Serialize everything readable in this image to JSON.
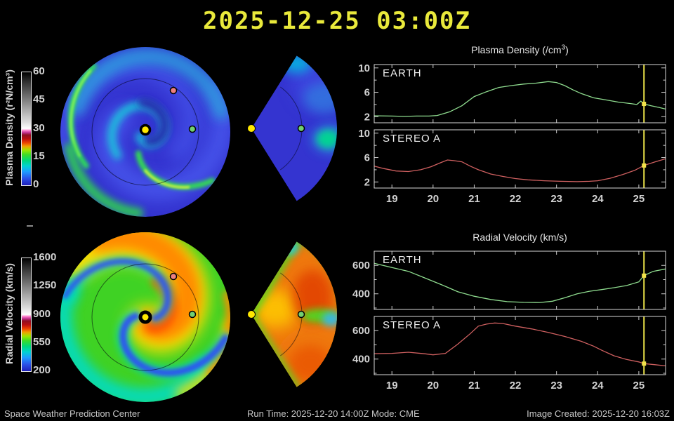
{
  "title": "2025-12-25 03:00Z",
  "colors": {
    "title": "#e9e93b",
    "axis_text": "#d2d2d2",
    "panel_border": "#d8d8d8",
    "now_line": "#e8e048",
    "now_marker": "#f2e24a",
    "sun_marker": "#ffe800",
    "earth_marker": "#72d072",
    "stereo_a_marker": "#ee8080",
    "density_base": "#3434d0",
    "velocity_base": "#3fd224",
    "background": "#000000"
  },
  "colormap": [
    {
      "p": 0.0,
      "c": "#2020bb"
    },
    {
      "p": 0.06,
      "c": "#2a52e8"
    },
    {
      "p": 0.12,
      "c": "#1e9bff"
    },
    {
      "p": 0.17,
      "c": "#00d2d2"
    },
    {
      "p": 0.22,
      "c": "#00d87a"
    },
    {
      "p": 0.27,
      "c": "#3cdc28"
    },
    {
      "p": 0.31,
      "c": "#9ce400"
    },
    {
      "p": 0.345,
      "c": "#f0a000"
    },
    {
      "p": 0.375,
      "c": "#ee4400"
    },
    {
      "p": 0.41,
      "c": "#bb0f0f"
    },
    {
      "p": 0.445,
      "c": "#8f0f20"
    },
    {
      "p": 0.465,
      "c": "#c03090"
    },
    {
      "p": 0.485,
      "c": "#ff80cc"
    },
    {
      "p": 0.5,
      "c": "#ffffff"
    },
    {
      "p": 0.56,
      "c": "#dcdcdc"
    },
    {
      "p": 0.68,
      "c": "#a4a4a4"
    },
    {
      "p": 0.8,
      "c": "#686868"
    },
    {
      "p": 0.92,
      "c": "#2e2e2e"
    },
    {
      "p": 1.0,
      "c": "#000000"
    }
  ],
  "colorbars": [
    {
      "label": "Plasma Density (r²N/cm³)",
      "ticks": [
        "60",
        "45",
        "30",
        "15",
        "0"
      ]
    },
    {
      "label": "Radial Velocity (km/s)",
      "ticks": [
        "1600",
        "1250",
        "900",
        "550",
        "200"
      ]
    }
  ],
  "maps": {
    "markers": [
      {
        "name": "sun",
        "color": "#ffe800"
      },
      {
        "name": "earth",
        "color": "#72d072"
      },
      {
        "name": "stereo-a",
        "color": "#ee8080"
      }
    ]
  },
  "chart_data": [
    {
      "type": "line",
      "title": "Plasma Density (/cm³)",
      "xlabel": "",
      "ylabel": "",
      "x": {
        "min": 18.57,
        "max": 25.65,
        "ticks": [
          19,
          20,
          21,
          22,
          23,
          24,
          25
        ]
      },
      "y": {
        "min": 1.0,
        "max": 10.55,
        "major_ticks": [
          2,
          6,
          10
        ],
        "minor_ticks": [
          4,
          8
        ]
      },
      "now_x": 25.125,
      "legend_position": "inside-top-left",
      "grid": false,
      "series": [
        {
          "name": "EARTH",
          "color": "#8fdc8f",
          "points": [
            [
              18.57,
              2.15
            ],
            [
              19.0,
              2.1
            ],
            [
              19.3,
              2.05
            ],
            [
              19.6,
              2.1
            ],
            [
              19.9,
              2.1
            ],
            [
              20.1,
              2.2
            ],
            [
              20.4,
              2.8
            ],
            [
              20.7,
              3.8
            ],
            [
              21.0,
              5.3
            ],
            [
              21.3,
              6.1
            ],
            [
              21.6,
              6.8
            ],
            [
              21.9,
              7.1
            ],
            [
              22.2,
              7.35
            ],
            [
              22.5,
              7.5
            ],
            [
              22.8,
              7.75
            ],
            [
              23.0,
              7.6
            ],
            [
              23.2,
              7.1
            ],
            [
              23.4,
              6.4
            ],
            [
              23.6,
              5.8
            ],
            [
              23.9,
              5.1
            ],
            [
              24.2,
              4.75
            ],
            [
              24.5,
              4.4
            ],
            [
              24.8,
              4.15
            ],
            [
              24.95,
              4.0
            ],
            [
              25.05,
              4.55
            ],
            [
              25.125,
              4.1
            ],
            [
              25.3,
              3.8
            ],
            [
              25.5,
              3.5
            ],
            [
              25.65,
              3.25
            ]
          ]
        },
        {
          "name": "STEREO A",
          "color": "#cf6060",
          "points": [
            [
              18.57,
              4.6
            ],
            [
              18.8,
              4.2
            ],
            [
              19.1,
              3.8
            ],
            [
              19.4,
              3.7
            ],
            [
              19.7,
              4.0
            ],
            [
              19.95,
              4.5
            ],
            [
              20.2,
              5.2
            ],
            [
              20.35,
              5.6
            ],
            [
              20.5,
              5.5
            ],
            [
              20.7,
              5.3
            ],
            [
              20.9,
              4.6
            ],
            [
              21.1,
              4.0
            ],
            [
              21.4,
              3.3
            ],
            [
              21.7,
              2.9
            ],
            [
              22.0,
              2.55
            ],
            [
              22.3,
              2.35
            ],
            [
              22.7,
              2.2
            ],
            [
              23.1,
              2.1
            ],
            [
              23.5,
              2.05
            ],
            [
              23.8,
              2.1
            ],
            [
              24.0,
              2.2
            ],
            [
              24.3,
              2.6
            ],
            [
              24.6,
              3.2
            ],
            [
              24.9,
              3.9
            ],
            [
              25.125,
              4.7
            ],
            [
              25.4,
              5.3
            ],
            [
              25.65,
              5.8
            ]
          ]
        }
      ]
    },
    {
      "type": "line",
      "title": "Radial Velocity (km/s)",
      "xlabel": "",
      "ylabel": "",
      "x": {
        "min": 18.57,
        "max": 25.65,
        "ticks": [
          19,
          20,
          21,
          22,
          23,
          24,
          25
        ]
      },
      "y": {
        "min": 290,
        "max": 700,
        "major_ticks": [
          400,
          600
        ],
        "minor_ticks": [
          300,
          500,
          700
        ]
      },
      "now_x": 25.125,
      "legend_position": "inside-top-left",
      "grid": false,
      "series": [
        {
          "name": "EARTH",
          "color": "#8fdc8f",
          "points": [
            [
              18.57,
              615
            ],
            [
              19.0,
              585
            ],
            [
              19.4,
              558
            ],
            [
              19.8,
              512
            ],
            [
              20.2,
              465
            ],
            [
              20.6,
              415
            ],
            [
              21.0,
              383
            ],
            [
              21.4,
              360
            ],
            [
              21.8,
              345
            ],
            [
              22.2,
              340
            ],
            [
              22.6,
              339
            ],
            [
              22.9,
              348
            ],
            [
              23.2,
              372
            ],
            [
              23.5,
              400
            ],
            [
              23.8,
              418
            ],
            [
              24.1,
              430
            ],
            [
              24.4,
              443
            ],
            [
              24.7,
              458
            ],
            [
              25.0,
              484
            ],
            [
              25.125,
              528
            ],
            [
              25.35,
              558
            ],
            [
              25.65,
              575
            ]
          ]
        },
        {
          "name": "STEREO A",
          "color": "#cf6060",
          "points": [
            [
              18.57,
              438
            ],
            [
              19.0,
              440
            ],
            [
              19.4,
              448
            ],
            [
              19.8,
              437
            ],
            [
              20.0,
              430
            ],
            [
              20.3,
              440
            ],
            [
              20.6,
              505
            ],
            [
              20.9,
              578
            ],
            [
              21.1,
              632
            ],
            [
              21.3,
              646
            ],
            [
              21.5,
              654
            ],
            [
              21.7,
              650
            ],
            [
              22.0,
              632
            ],
            [
              22.4,
              612
            ],
            [
              22.8,
              588
            ],
            [
              23.2,
              559
            ],
            [
              23.6,
              525
            ],
            [
              23.9,
              491
            ],
            [
              24.1,
              462
            ],
            [
              24.4,
              423
            ],
            [
              24.7,
              397
            ],
            [
              25.0,
              380
            ],
            [
              25.125,
              368
            ],
            [
              25.4,
              360
            ],
            [
              25.65,
              352
            ]
          ]
        }
      ]
    }
  ],
  "status_bar": {
    "left": "Space Weather Prediction Center",
    "center": "Run Time: 2025-12-20 14:00Z  Mode: CME",
    "right": "Image Created: 2025-12-20 16:03Z"
  }
}
